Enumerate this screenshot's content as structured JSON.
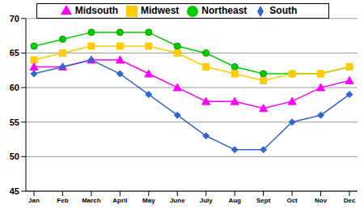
{
  "chart_data": {
    "type": "line",
    "categories": [
      "Jan",
      "Feb",
      "March",
      "April",
      "May",
      "June",
      "July",
      "Aug",
      "Sept",
      "Oct",
      "Nov",
      "Dec"
    ],
    "series": [
      {
        "name": "Northeast",
        "color": "#00cc00",
        "marker": "circle",
        "values": [
          66,
          67,
          68,
          68,
          68,
          66,
          65,
          63,
          62,
          62,
          62,
          63
        ]
      },
      {
        "name": "Midwest",
        "color": "#ffcc00",
        "marker": "square",
        "values": [
          64,
          65,
          66,
          66,
          66,
          65,
          63,
          62,
          61,
          62,
          62,
          63
        ]
      },
      {
        "name": "Midsouth",
        "color": "#ff00ff",
        "marker": "triangle",
        "values": [
          63,
          63,
          64,
          64,
          62,
          60,
          58,
          58,
          57,
          58,
          60,
          61
        ]
      },
      {
        "name": "South",
        "color": "#3366cc",
        "marker": "diamond",
        "values": [
          62,
          63,
          64,
          62,
          59,
          56,
          53,
          51,
          51,
          55,
          56,
          59
        ]
      }
    ],
    "ylim": [
      45,
      70
    ],
    "yticks": [
      45,
      50,
      55,
      60,
      65,
      70
    ],
    "grid": true,
    "legend": "top"
  }
}
